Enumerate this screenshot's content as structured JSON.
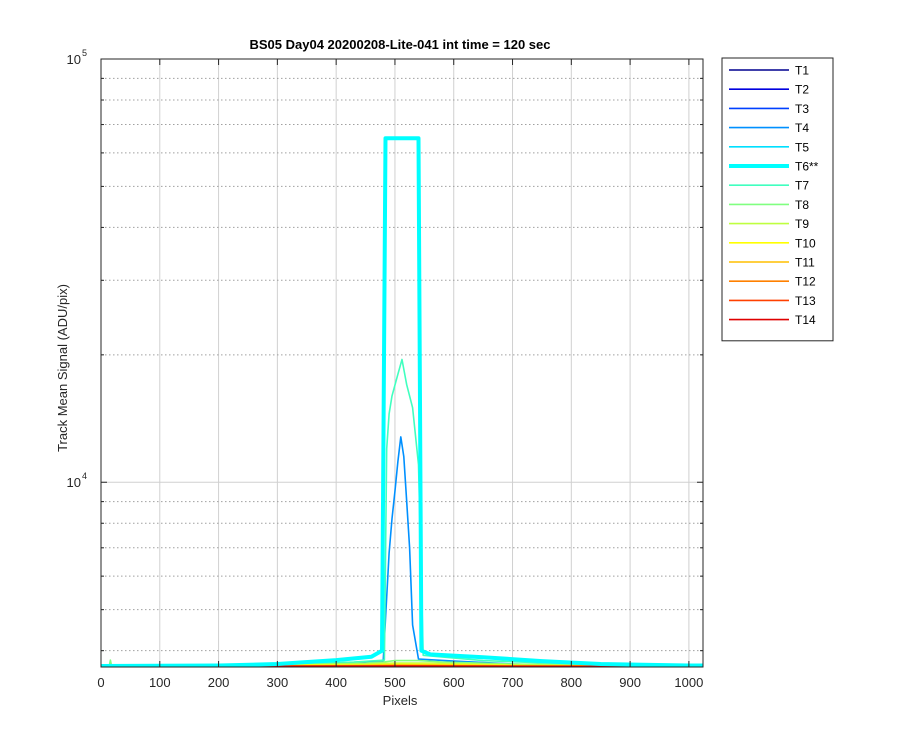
{
  "chart_data": {
    "type": "line",
    "title": "BS05 Day04 20200208-Lite-041 int time = 120 sec",
    "xlabel": "Pixels",
    "ylabel": "Track Mean Signal (ADU/pix)",
    "xlim": [
      0,
      1024
    ],
    "ylim": [
      3660,
      100000
    ],
    "yscale": "log",
    "grid": true,
    "x_ticks": [
      0,
      100,
      200,
      300,
      400,
      500,
      600,
      700,
      800,
      900,
      1000
    ],
    "y_ticks": [
      {
        "value": 10000,
        "base": "10",
        "exp": "4"
      },
      {
        "value": 100000,
        "base": "10",
        "exp": "5"
      }
    ],
    "legend_position": "outside-right",
    "series": [
      {
        "name": "T1",
        "color": "#00008F",
        "emphasis": false,
        "points": [
          [
            0,
            3670
          ],
          [
            1024,
            3670
          ]
        ]
      },
      {
        "name": "T2",
        "color": "#0000DF",
        "emphasis": false,
        "points": [
          [
            0,
            3670
          ],
          [
            1024,
            3670
          ]
        ]
      },
      {
        "name": "T3",
        "color": "#0040FF",
        "emphasis": false,
        "points": [
          [
            0,
            3672
          ],
          [
            1024,
            3672
          ]
        ]
      },
      {
        "name": "T4",
        "color": "#0090FF",
        "emphasis": false,
        "points": [
          [
            0,
            3675
          ],
          [
            300,
            3690
          ],
          [
            420,
            3750
          ],
          [
            480,
            3780
          ],
          [
            490,
            6800
          ],
          [
            495,
            8200
          ],
          [
            500,
            9500
          ],
          [
            505,
            11200
          ],
          [
            510,
            12800
          ],
          [
            515,
            11500
          ],
          [
            520,
            9000
          ],
          [
            525,
            7000
          ],
          [
            530,
            4600
          ],
          [
            540,
            3820
          ],
          [
            600,
            3780
          ],
          [
            700,
            3720
          ],
          [
            800,
            3690
          ],
          [
            1024,
            3680
          ]
        ]
      },
      {
        "name": "T5",
        "color": "#00DFFF",
        "emphasis": false,
        "points": [
          [
            0,
            3676
          ],
          [
            1024,
            3678
          ]
        ]
      },
      {
        "name": "T6**",
        "color": "#00FFFF",
        "emphasis": true,
        "points": [
          [
            0,
            3680
          ],
          [
            200,
            3690
          ],
          [
            300,
            3720
          ],
          [
            400,
            3800
          ],
          [
            460,
            3870
          ],
          [
            478,
            4000
          ],
          [
            484,
            65000
          ],
          [
            540,
            65000
          ],
          [
            545,
            4000
          ],
          [
            560,
            3920
          ],
          [
            650,
            3860
          ],
          [
            750,
            3780
          ],
          [
            850,
            3720
          ],
          [
            1000,
            3690
          ],
          [
            1024,
            3690
          ]
        ]
      },
      {
        "name": "T7",
        "color": "#40FFBF",
        "emphasis": false,
        "points": [
          [
            0,
            3675
          ],
          [
            300,
            3700
          ],
          [
            430,
            3760
          ],
          [
            482,
            3800
          ],
          [
            486,
            12000
          ],
          [
            490,
            14500
          ],
          [
            495,
            16000
          ],
          [
            505,
            18000
          ],
          [
            512,
            19500
          ],
          [
            520,
            17000
          ],
          [
            530,
            15000
          ],
          [
            540,
            11000
          ],
          [
            548,
            3900
          ],
          [
            650,
            3790
          ],
          [
            800,
            3720
          ],
          [
            1024,
            3690
          ]
        ]
      },
      {
        "name": "T8",
        "color": "#80FF80",
        "emphasis": false,
        "points": [
          [
            0,
            3675
          ],
          [
            14,
            3675
          ],
          [
            16,
            3800
          ],
          [
            18,
            3675
          ],
          [
            300,
            3690
          ],
          [
            450,
            3740
          ],
          [
            480,
            3760
          ],
          [
            500,
            3790
          ],
          [
            540,
            3790
          ],
          [
            580,
            3760
          ],
          [
            700,
            3720
          ],
          [
            1024,
            3680
          ]
        ]
      },
      {
        "name": "T9",
        "color": "#BFFF40",
        "emphasis": false,
        "points": [
          [
            0,
            3672
          ],
          [
            450,
            3720
          ],
          [
            500,
            3740
          ],
          [
            560,
            3740
          ],
          [
            700,
            3700
          ],
          [
            1024,
            3676
          ]
        ]
      },
      {
        "name": "T10",
        "color": "#FFFF00",
        "emphasis": false,
        "points": [
          [
            0,
            3671
          ],
          [
            450,
            3700
          ],
          [
            500,
            3715
          ],
          [
            560,
            3712
          ],
          [
            700,
            3690
          ],
          [
            1024,
            3674
          ]
        ]
      },
      {
        "name": "T11",
        "color": "#FFBF00",
        "emphasis": false,
        "points": [
          [
            0,
            3670
          ],
          [
            450,
            3690
          ],
          [
            500,
            3700
          ],
          [
            560,
            3698
          ],
          [
            700,
            3682
          ],
          [
            1024,
            3672
          ]
        ]
      },
      {
        "name": "T12",
        "color": "#FF8000",
        "emphasis": false,
        "points": [
          [
            0,
            3669
          ],
          [
            500,
            3685
          ],
          [
            1024,
            3670
          ]
        ]
      },
      {
        "name": "T13",
        "color": "#FF4000",
        "emphasis": false,
        "points": [
          [
            0,
            3668
          ],
          [
            500,
            3678
          ],
          [
            1024,
            3669
          ]
        ]
      },
      {
        "name": "T14",
        "color": "#DF0000",
        "emphasis": false,
        "points": [
          [
            0,
            3668
          ],
          [
            500,
            3675
          ],
          [
            1024,
            3668
          ]
        ]
      }
    ]
  }
}
